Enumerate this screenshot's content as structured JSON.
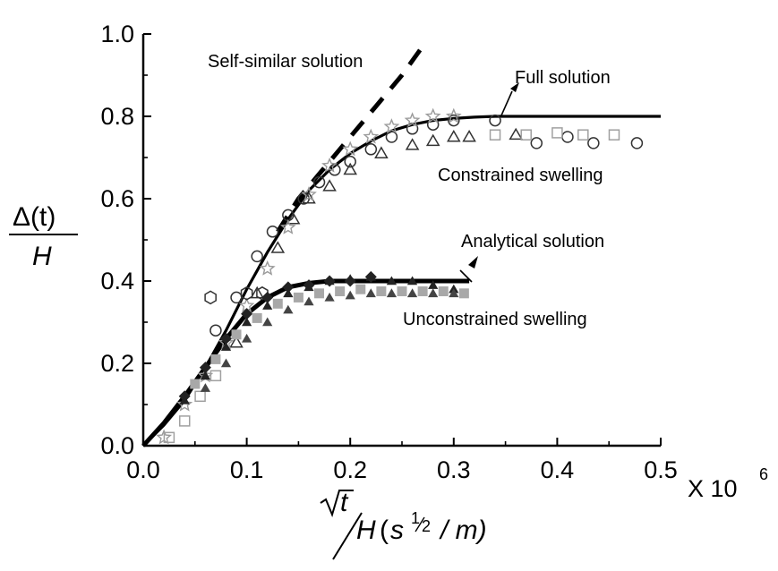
{
  "chart_data": {
    "type": "scatter",
    "title": "",
    "xlabel": {
      "radicand": "t",
      "denominator": "H",
      "unit_base": "s",
      "unit_exp_num": "1",
      "unit_exp_den": "2",
      "unit_tail": "/ m)",
      "open_paren": "("
    },
    "ylabel": {
      "numerator": "Δ(t)",
      "denominator": "H"
    },
    "x_multiplier": "X 10",
    "x_multiplier_exp": "6",
    "xlim": [
      0.0,
      0.5
    ],
    "ylim": [
      0.0,
      1.0
    ],
    "x_ticks": [
      "0.0",
      "0.1",
      "0.2",
      "0.3",
      "0.4",
      "0.5"
    ],
    "y_ticks": [
      "0.0",
      "0.2",
      "0.4",
      "0.6",
      "0.8",
      "1.0"
    ],
    "grid": false,
    "annotations": {
      "self_similar": "Self-similar solution",
      "full": "Full solution",
      "constrained": "Constrained swelling",
      "analytical": "Analytical solution",
      "unconstrained": "Unconstrained swelling"
    },
    "series": [
      {
        "marker": "dashed-line",
        "x": [
          0.13,
          0.14,
          0.15,
          0.17,
          0.19,
          0.21,
          0.23,
          0.25,
          0.27
        ],
        "y": [
          0.52,
          0.56,
          0.6,
          0.66,
          0.72,
          0.78,
          0.84,
          0.9,
          0.97
        ]
      },
      {
        "marker": "solid-line",
        "x": [
          0.0,
          0.02,
          0.04,
          0.06,
          0.08,
          0.1,
          0.12,
          0.14,
          0.16,
          0.18,
          0.2,
          0.22,
          0.24,
          0.26,
          0.28,
          0.3,
          0.32,
          0.34,
          0.36,
          0.4,
          0.45,
          0.5
        ],
        "y": [
          0.0,
          0.05,
          0.11,
          0.19,
          0.28,
          0.38,
          0.47,
          0.55,
          0.62,
          0.67,
          0.71,
          0.74,
          0.765,
          0.78,
          0.79,
          0.795,
          0.798,
          0.8,
          0.8,
          0.8,
          0.8,
          0.8
        ]
      },
      {
        "marker": "solid-line-thick",
        "x": [
          0.0,
          0.02,
          0.04,
          0.06,
          0.08,
          0.1,
          0.12,
          0.14,
          0.16,
          0.18,
          0.2,
          0.22,
          0.25,
          0.28,
          0.315
        ],
        "y": [
          0.0,
          0.055,
          0.12,
          0.19,
          0.26,
          0.32,
          0.36,
          0.385,
          0.395,
          0.4,
          0.4,
          0.4,
          0.4,
          0.4,
          0.4
        ]
      },
      {
        "marker": "circle-open",
        "x": [
          0.07,
          0.09,
          0.11,
          0.125,
          0.14,
          0.155,
          0.17,
          0.185,
          0.2,
          0.22,
          0.24,
          0.26,
          0.28,
          0.3,
          0.34,
          0.38,
          0.41,
          0.435,
          0.477
        ],
        "y": [
          0.28,
          0.36,
          0.46,
          0.52,
          0.56,
          0.6,
          0.64,
          0.67,
          0.69,
          0.72,
          0.75,
          0.77,
          0.78,
          0.79,
          0.79,
          0.735,
          0.75,
          0.735,
          0.735
        ]
      },
      {
        "marker": "triangle-open",
        "x": [
          0.09,
          0.11,
          0.13,
          0.145,
          0.16,
          0.18,
          0.2,
          0.23,
          0.26,
          0.28,
          0.3,
          0.315,
          0.36
        ],
        "y": [
          0.25,
          0.37,
          0.48,
          0.55,
          0.6,
          0.63,
          0.67,
          0.71,
          0.73,
          0.74,
          0.75,
          0.75,
          0.755
        ]
      },
      {
        "marker": "star-open",
        "x": [
          0.02,
          0.04,
          0.06,
          0.08,
          0.1,
          0.12,
          0.14,
          0.16,
          0.18,
          0.2,
          0.22,
          0.24,
          0.26,
          0.28,
          0.3
        ],
        "y": [
          0.02,
          0.1,
          0.17,
          0.25,
          0.34,
          0.43,
          0.53,
          0.61,
          0.68,
          0.72,
          0.75,
          0.775,
          0.79,
          0.8,
          0.8
        ]
      },
      {
        "marker": "square-open",
        "x": [
          0.025,
          0.04,
          0.055,
          0.07,
          0.34,
          0.37,
          0.4,
          0.425,
          0.455
        ],
        "y": [
          0.02,
          0.06,
          0.12,
          0.17,
          0.755,
          0.755,
          0.76,
          0.755,
          0.755
        ]
      },
      {
        "marker": "hexagon-open",
        "x": [
          0.065,
          0.1,
          0.115
        ],
        "y": [
          0.36,
          0.37,
          0.37
        ]
      },
      {
        "marker": "triangle-filled",
        "x": [
          0.04,
          0.06,
          0.08,
          0.1,
          0.12,
          0.14,
          0.16,
          0.18,
          0.2,
          0.22,
          0.24,
          0.26,
          0.28,
          0.3
        ],
        "y": [
          0.11,
          0.17,
          0.24,
          0.3,
          0.34,
          0.37,
          0.385,
          0.4,
          0.405,
          0.41,
          0.4,
          0.4,
          0.39,
          0.38
        ]
      },
      {
        "marker": "diamond-filled",
        "x": [
          0.04,
          0.06,
          0.08,
          0.1,
          0.12,
          0.14,
          0.16,
          0.18,
          0.2,
          0.22
        ],
        "y": [
          0.12,
          0.19,
          0.26,
          0.32,
          0.36,
          0.385,
          0.39,
          0.4,
          0.4,
          0.41
        ]
      },
      {
        "marker": "square-gray",
        "x": [
          0.05,
          0.07,
          0.09,
          0.11,
          0.13,
          0.15,
          0.17,
          0.19,
          0.21,
          0.23,
          0.25,
          0.27,
          0.29,
          0.31
        ],
        "y": [
          0.15,
          0.21,
          0.27,
          0.31,
          0.345,
          0.36,
          0.37,
          0.375,
          0.38,
          0.375,
          0.375,
          0.375,
          0.375,
          0.37
        ]
      },
      {
        "marker": "triangle-dark",
        "x": [
          0.06,
          0.08,
          0.1,
          0.12,
          0.14,
          0.16,
          0.18,
          0.2,
          0.22,
          0.24,
          0.26,
          0.28,
          0.3
        ],
        "y": [
          0.14,
          0.2,
          0.26,
          0.3,
          0.33,
          0.35,
          0.36,
          0.365,
          0.37,
          0.37,
          0.37,
          0.37,
          0.37
        ]
      }
    ],
    "colors": {
      "axis": "#000000",
      "line": "#000000",
      "open_marker": "#333333",
      "star_marker": "#9a9a9a",
      "square_open": "#a0a0a0",
      "gray_fill": "#a8a8a8",
      "dark_fill": "#222222"
    }
  }
}
